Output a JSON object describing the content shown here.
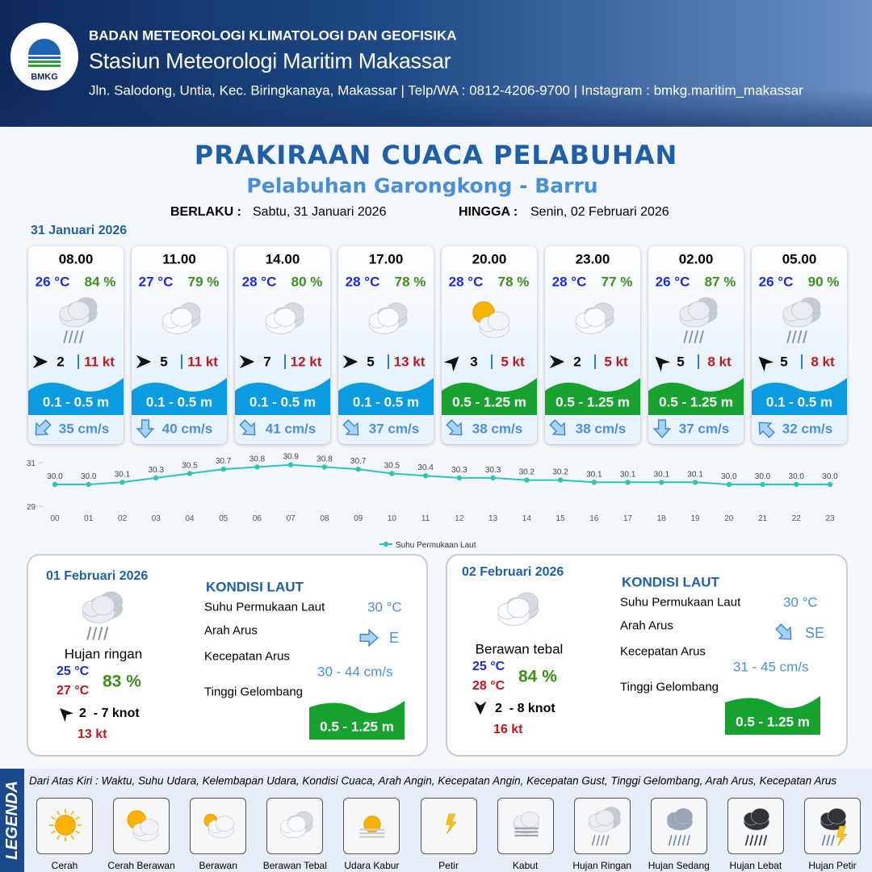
{
  "header": {
    "logo": "BMKG",
    "org": "BADAN METEOROLOGI KLIMATOLOGI DAN GEOFISIKA",
    "station": "Stasiun Meteorologi Maritim Makassar",
    "address": "Jln. Salodong, Untia, Kec. Biringkanaya, Makassar | Telp/WA : 0812-4206-9700 | Instagram : bmkg.maritim_makassar"
  },
  "title": "PRAKIRAAN CUACA PELABUHAN",
  "subtitle": "Pelabuhan Garongkong - Barru",
  "validity": {
    "from_label": "BERLAKU :",
    "from": "Sabtu, 31 Januari 2026",
    "to_label": "HINGGA :",
    "to": "Senin, 02 Februari 2026"
  },
  "day1": {
    "date": "31 Januari 2026",
    "cards": [
      {
        "time": "08.00",
        "temp": "26 °C",
        "humidity": "84 %",
        "icon": "hujan-ringan",
        "wind_arrow": "E",
        "wind": "2",
        "gust": "11 kt",
        "wave": "0.1 - 0.5 m",
        "wave_color": "#0a9be0",
        "current_arrow": "SW",
        "current": "35 cm/s"
      },
      {
        "time": "11.00",
        "temp": "27 °C",
        "humidity": "79 %",
        "icon": "berawan-tebal",
        "wind_arrow": "E",
        "wind": "5",
        "gust": "11 kt",
        "wave": "0.1 - 0.5 m",
        "wave_color": "#0a9be0",
        "current_arrow": "S",
        "current": "40 cm/s"
      },
      {
        "time": "14.00",
        "temp": "28 °C",
        "humidity": "80 %",
        "icon": "berawan-tebal",
        "wind_arrow": "E",
        "wind": "7",
        "gust": "12 kt",
        "wave": "0.1 - 0.5 m",
        "wave_color": "#0a9be0",
        "current_arrow": "SE",
        "current": "41 cm/s"
      },
      {
        "time": "17.00",
        "temp": "28 °C",
        "humidity": "78 %",
        "icon": "berawan-tebal",
        "wind_arrow": "E",
        "wind": "5",
        "gust": "13 kt",
        "wave": "0.1 - 0.5 m",
        "wave_color": "#0a9be0",
        "current_arrow": "SE",
        "current": "37 cm/s"
      },
      {
        "time": "20.00",
        "temp": "28 °C",
        "humidity": "78 %",
        "icon": "cerah-berawan",
        "wind_arrow": "NE",
        "wind": "3",
        "gust": "5 kt",
        "wave": "0.5 - 1.25 m",
        "wave_color": "#17a22f",
        "current_arrow": "SE",
        "current": "38 cm/s"
      },
      {
        "time": "23.00",
        "temp": "28 °C",
        "humidity": "77 %",
        "icon": "berawan-tebal",
        "wind_arrow": "E",
        "wind": "2",
        "gust": "5 kt",
        "wave": "0.5 - 1.25 m",
        "wave_color": "#17a22f",
        "current_arrow": "SE",
        "current": "38 cm/s"
      },
      {
        "time": "02.00",
        "temp": "26 °C",
        "humidity": "87 %",
        "icon": "hujan-ringan",
        "wind_arrow": "NW",
        "wind": "5",
        "gust": "8 kt",
        "wave": "0.5 - 1.25 m",
        "wave_color": "#17a22f",
        "current_arrow": "S",
        "current": "37 cm/s"
      },
      {
        "time": "05.00",
        "temp": "26 °C",
        "humidity": "90 %",
        "icon": "hujan-ringan",
        "wind_arrow": "NW",
        "wind": "5",
        "gust": "8 kt",
        "wave": "0.1 - 0.5 m",
        "wave_color": "#0a9be0",
        "current_arrow": "NW",
        "current": "32 cm/s"
      }
    ]
  },
  "chart_data": {
    "type": "line",
    "categories": [
      "00",
      "01",
      "02",
      "03",
      "04",
      "05",
      "06",
      "07",
      "08",
      "09",
      "10",
      "11",
      "12",
      "13",
      "14",
      "15",
      "16",
      "17",
      "18",
      "19",
      "20",
      "21",
      "22",
      "23"
    ],
    "values": [
      30.0,
      30.0,
      30.1,
      30.3,
      30.5,
      30.7,
      30.8,
      30.9,
      30.8,
      30.7,
      30.5,
      30.4,
      30.3,
      30.3,
      30.2,
      30.2,
      30.1,
      30.1,
      30.1,
      30.1,
      30.0,
      30.0,
      30.0,
      30.0
    ],
    "value_labels": [
      "30.0",
      "30.0",
      "30.1",
      "30.3",
      "30.5",
      "30.7",
      "30.8",
      "30.9",
      "30.8",
      "30.7",
      "30.5",
      "30.4",
      "30.3",
      "30.3",
      "30.2",
      "30.2",
      "30.1",
      "30.1",
      "30.1",
      "30.1",
      "30.0",
      "30.0",
      "30.0",
      "30.0"
    ],
    "series_name": "Suhu Permukaan Laut",
    "color": "#2ec4b6",
    "ylim": [
      29,
      31
    ],
    "yticks": [
      29,
      31
    ]
  },
  "days": [
    {
      "date": "01 Februari 2026",
      "icon": "hujan-ringan",
      "condition": "Hujan ringan",
      "temp_min": "25 °C",
      "temp_max": "27 °C",
      "humidity": "83 %",
      "wind_arrow": "NW",
      "wind": "2  - 7 knot",
      "gust": "13 kt",
      "sea": {
        "heading": "KONDISI LAUT",
        "sst_label": "Suhu Permukaan Laut",
        "sst": "30 °C",
        "dir_label": "Arah Arus",
        "dir": "E",
        "speed_label": "Kecepatan Arus",
        "speed": "30 - 44 cm/s",
        "wave_label": "Tinggi Gelombang",
        "wave": "0.5 - 1.25 m"
      }
    },
    {
      "date": "02 Februari 2026",
      "icon": "berawan-tebal",
      "condition": "Berawan tebal",
      "temp_min": "25 °C",
      "temp_max": "28 °C",
      "humidity": "84 %",
      "wind_arrow": "S",
      "wind": "2  - 8 knot",
      "gust": "16 kt",
      "sea": {
        "heading": "KONDISI LAUT",
        "sst_label": "Suhu Permukaan Laut",
        "sst": "30 °C",
        "dir_label": "Arah Arus",
        "dir": "SE",
        "speed_label": "Kecepatan Arus",
        "speed": "31 - 45 cm/s",
        "wave_label": "Tinggi Gelombang",
        "wave": "0.5 - 1.25 m"
      }
    }
  ],
  "legend": {
    "title": "LEGENDA",
    "description": "Dari Atas Kiri : Waktu, Suhu Udara, Kelembapan Udara, Kondisi Cuaca, Arah Angin, Kecepatan Angin, Kecepatan Gust, Tinggi Gelombang, Arah Arus, Kecepatan Arus",
    "items": [
      {
        "name": "Cerah",
        "icon": "cerah"
      },
      {
        "name": "Cerah Berawan",
        "icon": "cerah-berawan"
      },
      {
        "name": "Berawan",
        "icon": "berawan"
      },
      {
        "name": "Berawan Tebal",
        "icon": "berawan-tebal"
      },
      {
        "name": "Udara Kabur",
        "icon": "udara-kabur"
      },
      {
        "name": "Petir",
        "icon": "petir"
      },
      {
        "name": "Kabut",
        "icon": "kabut"
      },
      {
        "name": "Hujan Ringan",
        "icon": "hujan-ringan"
      },
      {
        "name": "Hujan Sedang",
        "icon": "hujan-sedang"
      },
      {
        "name": "Hujan Lebat",
        "icon": "hujan-lebat"
      },
      {
        "name": "Hujan Petir",
        "icon": "hujan-petir"
      }
    ]
  }
}
